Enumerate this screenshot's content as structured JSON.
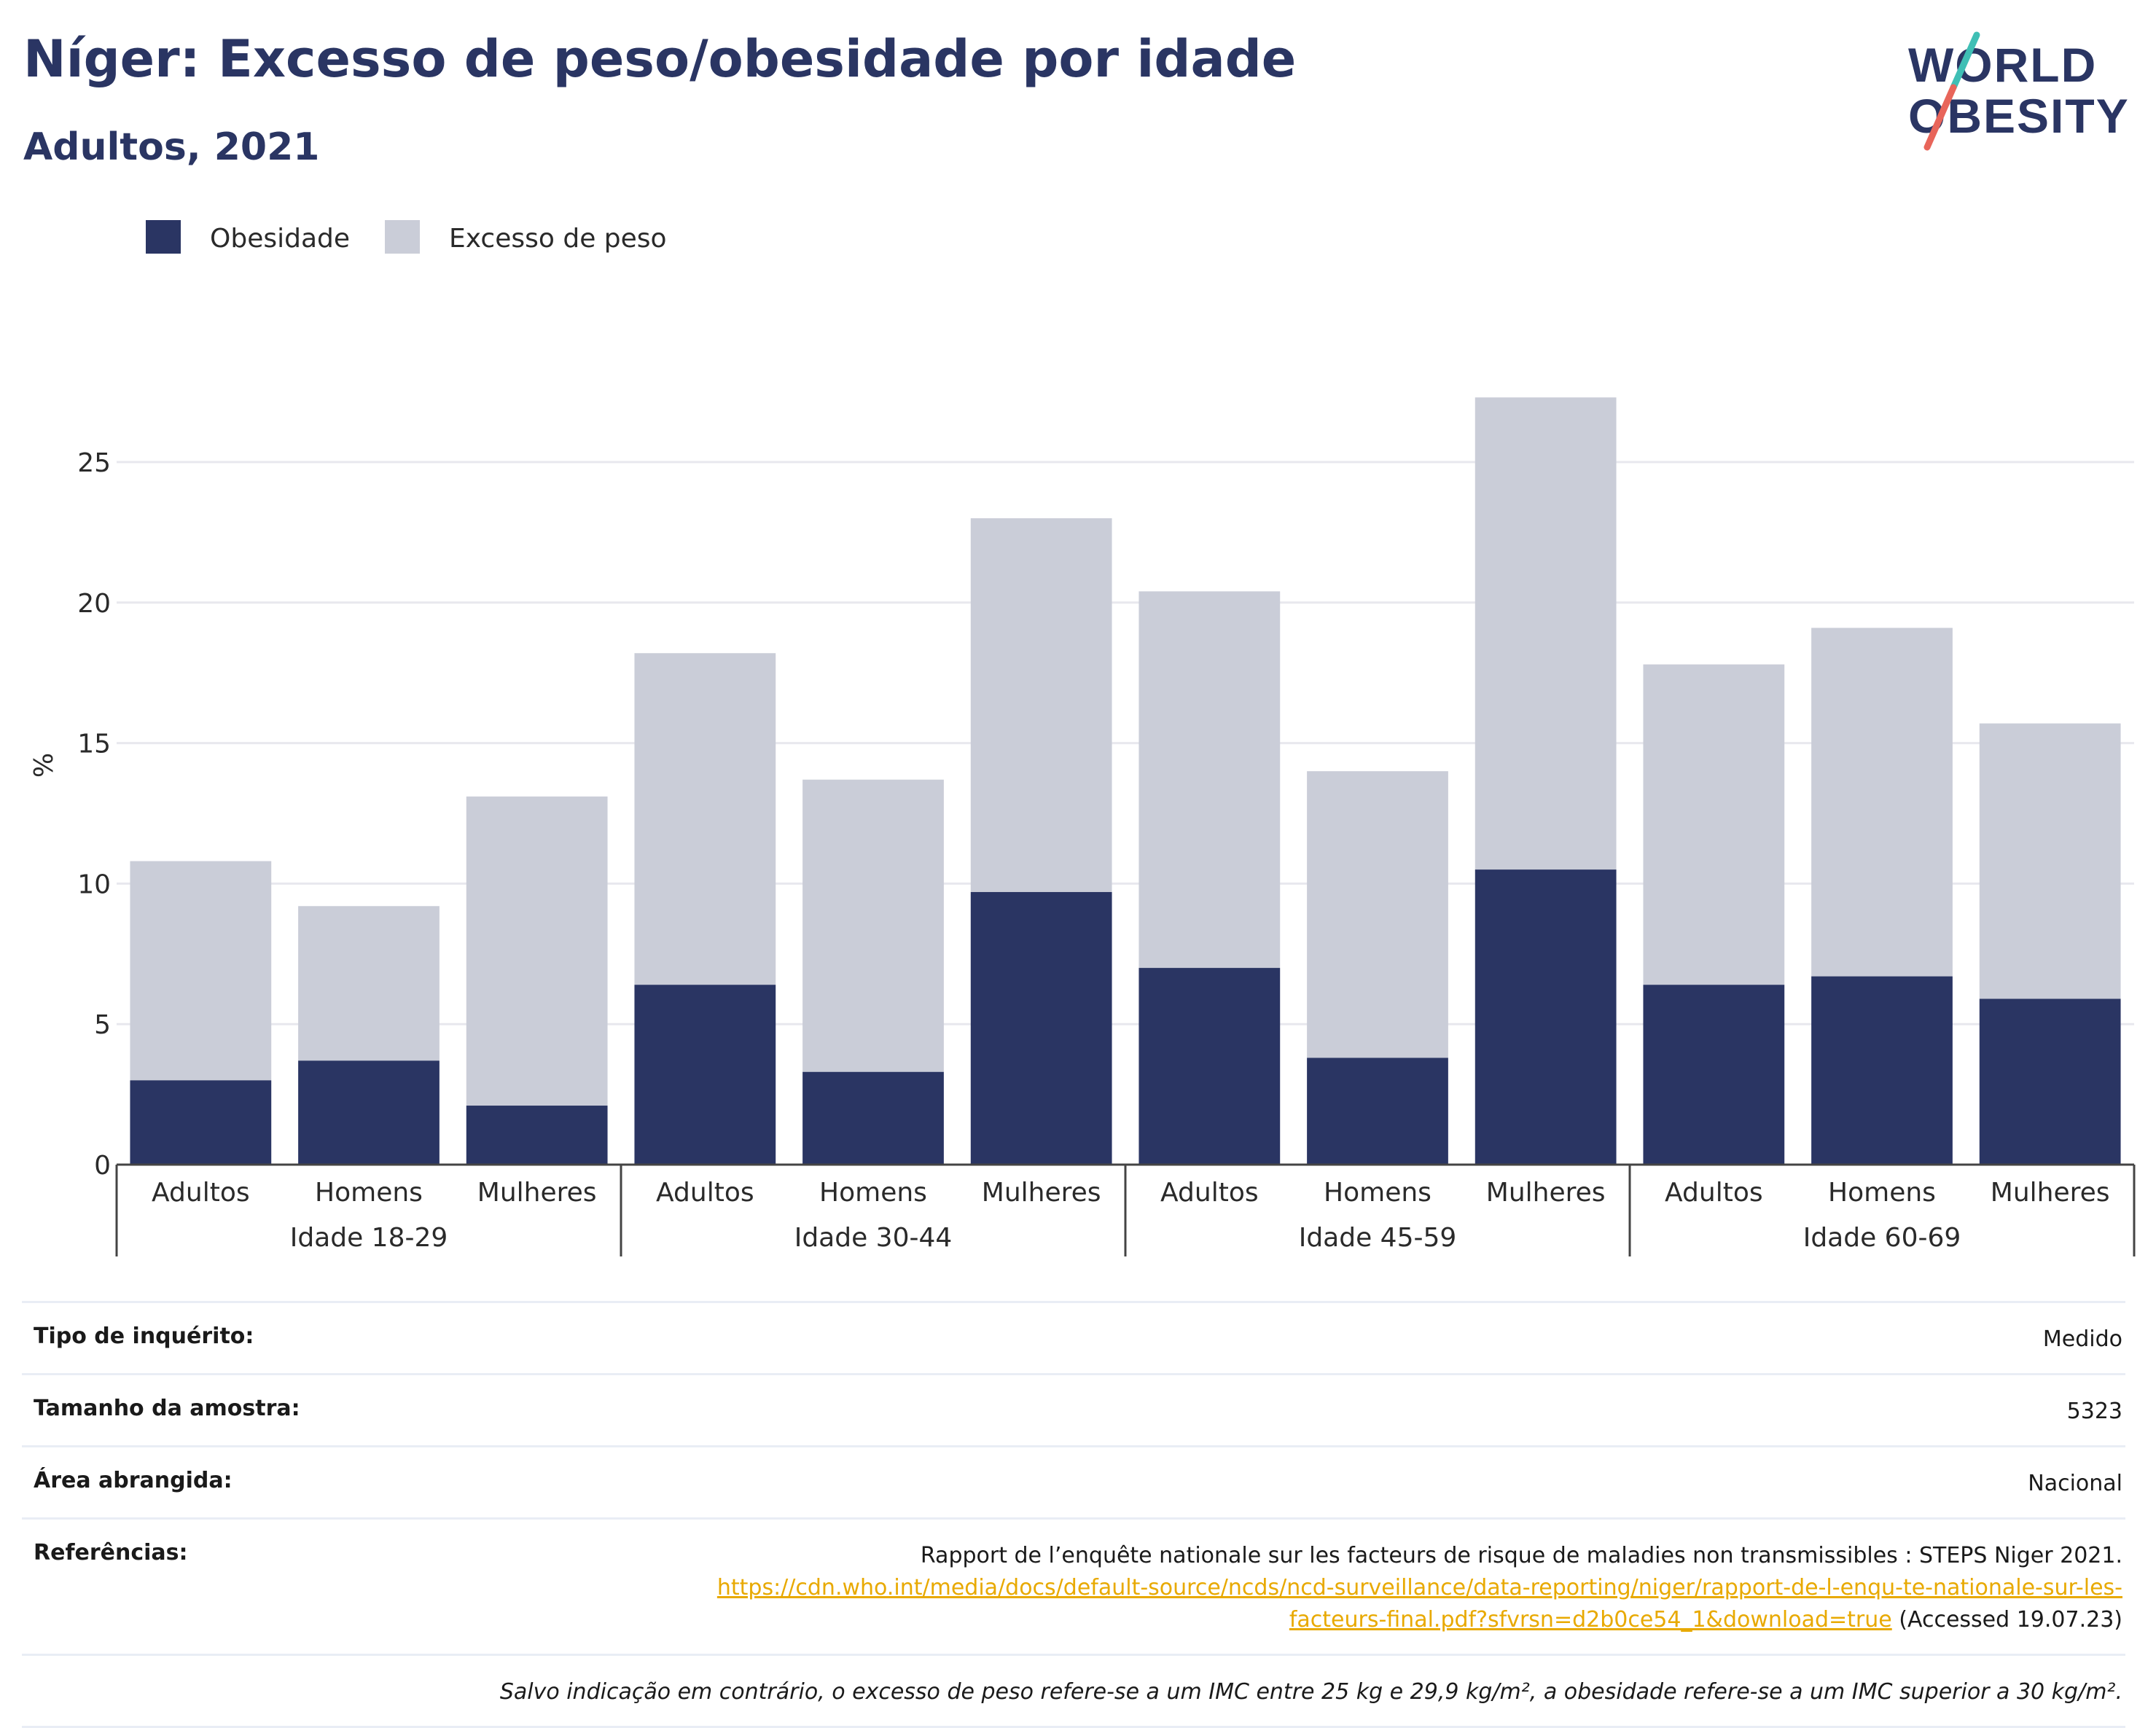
{
  "title": "Níger: Excesso de peso/obesidade por idade",
  "subtitle": "Adultos, 2021",
  "logo": {
    "line1": "WORLD",
    "line2": "OBESITY",
    "colors": {
      "text": "#2a3563",
      "slash_top": "#3fbfb5",
      "slash_bottom": "#e8655a"
    }
  },
  "colors": {
    "obesity": "#2a3563",
    "overweight": "#cacdd8",
    "grid": "#e8e8ee",
    "axis": "#444444"
  },
  "chart_data": {
    "type": "bar",
    "stacked": true,
    "ylabel": "%",
    "ylim": [
      0,
      28
    ],
    "yticks": [
      0,
      5,
      10,
      15,
      20,
      25
    ],
    "grid": true,
    "legend_position": "top-left",
    "groups": [
      "Idade 18-29",
      "Idade 30-44",
      "Idade 45-59",
      "Idade 60-69"
    ],
    "categories": [
      "Adultos",
      "Homens",
      "Mulheres",
      "Adultos",
      "Homens",
      "Mulheres",
      "Adultos",
      "Homens",
      "Mulheres",
      "Adultos",
      "Homens",
      "Mulheres"
    ],
    "series": [
      {
        "name": "Obesidade",
        "values": [
          3.0,
          3.7,
          2.1,
          6.4,
          3.3,
          9.7,
          7.0,
          3.8,
          10.5,
          6.4,
          6.7,
          5.9
        ]
      },
      {
        "name": "Excesso de peso",
        "values": [
          7.8,
          5.5,
          11.0,
          11.8,
          10.4,
          13.3,
          13.4,
          10.2,
          16.8,
          11.4,
          12.4,
          9.8
        ]
      }
    ],
    "totals": [
      10.8,
      9.2,
      13.1,
      18.2,
      13.7,
      23.0,
      20.4,
      14.0,
      27.3,
      17.8,
      19.1,
      15.7
    ]
  },
  "info": {
    "rows": [
      {
        "label": "Tipo de inquérito:",
        "value": "Medido"
      },
      {
        "label": "Tamanho da amostra:",
        "value": "5323"
      },
      {
        "label": "Área abrangida:",
        "value": "Nacional"
      }
    ],
    "references": {
      "label": "Referências:",
      "text": "Rapport de l’enquête nationale sur les facteurs de risque de maladies non transmissibles : STEPS Niger 2021.",
      "link_line1": "https://cdn.who.int/media/docs/default-source/ncds/ncd-surveillance/data-reporting/niger/rapport-de-l-enqu-te-nationale-sur-les-",
      "link_line2": "facteurs-final.pdf?sfvrsn=d2b0ce54_1&download=true",
      "accessed": " (Accessed 19.07.23)"
    },
    "note": "Salvo indicação em contrário, o excesso de peso refere-se a um IMC entre 25 kg e 29,9 kg/m², a obesidade refere-se a um IMC superior a 30 kg/m²."
  }
}
